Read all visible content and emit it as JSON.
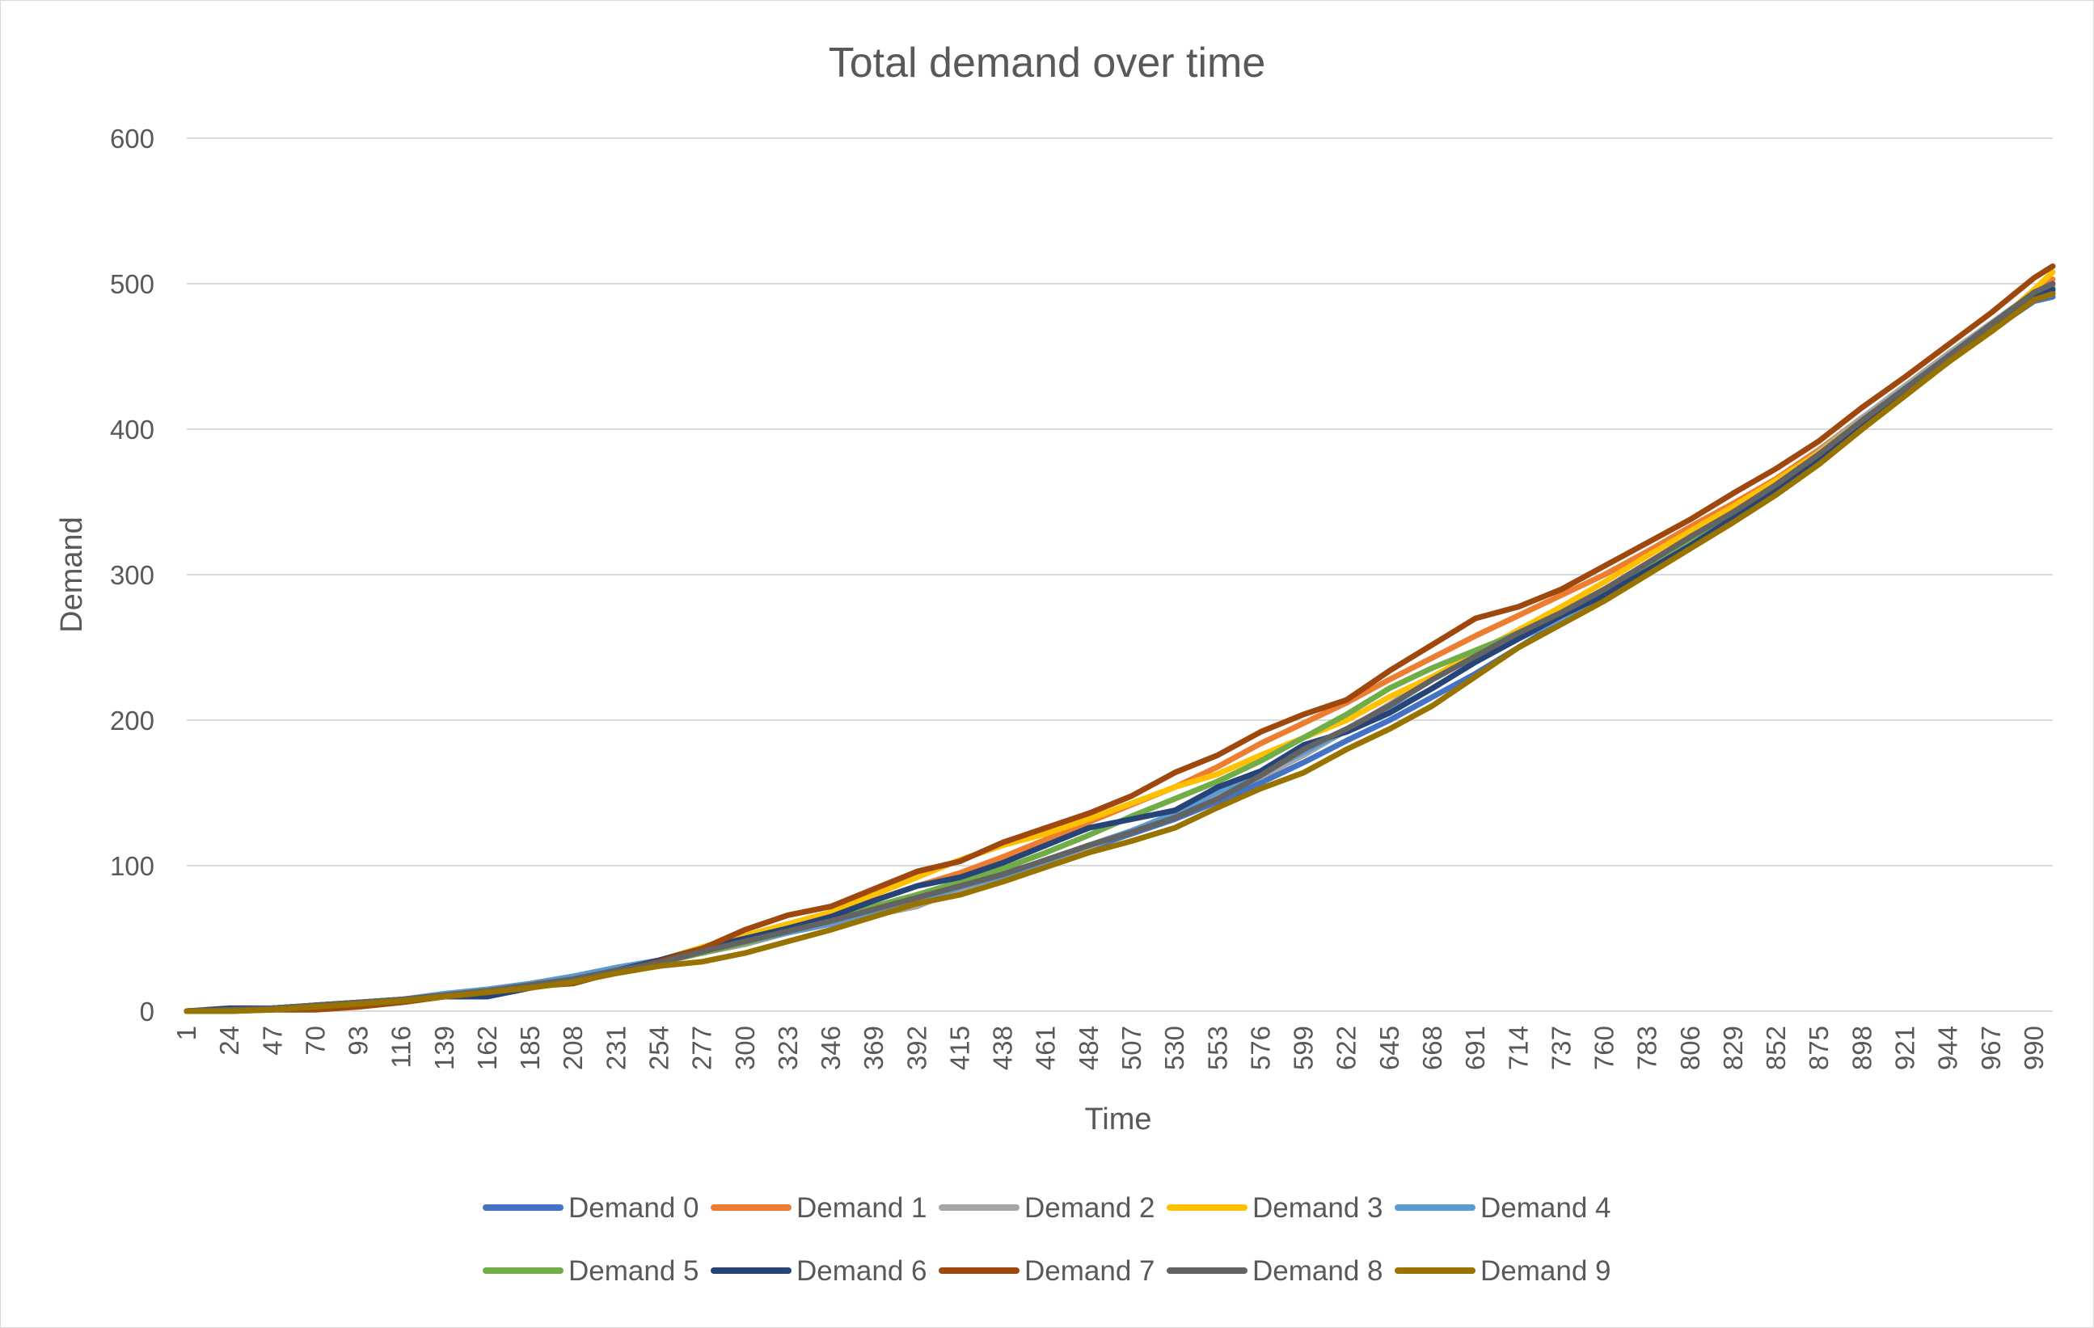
{
  "chart_data": {
    "type": "line",
    "title": "Total demand over time",
    "xlabel": "Time",
    "ylabel": "Demand",
    "ylim": [
      0,
      600
    ],
    "yticks": [
      0,
      100,
      200,
      300,
      400,
      500,
      600
    ],
    "xlim": [
      1,
      1000
    ],
    "xticks": [
      1,
      24,
      47,
      70,
      93,
      116,
      139,
      162,
      185,
      208,
      231,
      254,
      277,
      300,
      323,
      346,
      369,
      392,
      415,
      438,
      461,
      484,
      507,
      530,
      553,
      576,
      599,
      622,
      645,
      668,
      691,
      714,
      737,
      760,
      783,
      806,
      829,
      852,
      875,
      898,
      921,
      944,
      967,
      990
    ],
    "grid": true,
    "legend_position": "bottom",
    "x": [
      1,
      24,
      47,
      70,
      93,
      116,
      139,
      162,
      185,
      208,
      231,
      254,
      277,
      300,
      323,
      346,
      369,
      392,
      415,
      438,
      461,
      484,
      507,
      530,
      553,
      576,
      599,
      622,
      645,
      668,
      691,
      714,
      737,
      760,
      783,
      806,
      829,
      852,
      875,
      898,
      921,
      944,
      967,
      990,
      1000
    ],
    "series": [
      {
        "name": "Demand 0",
        "color": "#4472C4",
        "values": [
          0,
          1,
          2,
          4,
          6,
          8,
          11,
          14,
          18,
          22,
          28,
          34,
          41,
          48,
          55,
          62,
          70,
          78,
          86,
          95,
          103,
          112,
          122,
          132,
          144,
          157,
          171,
          186,
          200,
          216,
          232,
          250,
          268,
          285,
          303,
          321,
          340,
          358,
          378,
          402,
          424,
          446,
          468,
          488,
          491
        ]
      },
      {
        "name": "Demand 1",
        "color": "#ED7D31",
        "values": [
          0,
          1,
          2,
          3,
          5,
          8,
          11,
          14,
          17,
          21,
          27,
          34,
          42,
          51,
          58,
          66,
          76,
          86,
          95,
          106,
          118,
          130,
          142,
          154,
          168,
          184,
          198,
          212,
          228,
          243,
          258,
          272,
          286,
          300,
          316,
          333,
          349,
          366,
          386,
          408,
          428,
          448,
          470,
          494,
          503
        ]
      },
      {
        "name": "Demand 2",
        "color": "#A5A5A5",
        "values": [
          0,
          1,
          2,
          4,
          6,
          8,
          11,
          14,
          18,
          22,
          28,
          33,
          40,
          46,
          54,
          60,
          66,
          72,
          84,
          93,
          103,
          113,
          124,
          134,
          148,
          161,
          176,
          193,
          211,
          229,
          245,
          259,
          273,
          290,
          307,
          324,
          343,
          362,
          385,
          408,
          430,
          452,
          473,
          494,
          499
        ]
      },
      {
        "name": "Demand 3",
        "color": "#FFC000",
        "values": [
          0,
          1,
          2,
          4,
          6,
          8,
          11,
          14,
          17,
          21,
          28,
          35,
          44,
          52,
          60,
          68,
          80,
          92,
          104,
          114,
          122,
          132,
          143,
          154,
          163,
          176,
          188,
          200,
          216,
          230,
          246,
          262,
          278,
          295,
          313,
          330,
          347,
          365,
          384,
          406,
          427,
          448,
          470,
          496,
          508
        ]
      },
      {
        "name": "Demand 4",
        "color": "#5B9BD5",
        "values": [
          0,
          1,
          2,
          4,
          6,
          8,
          12,
          15,
          19,
          24,
          30,
          35,
          40,
          47,
          54,
          60,
          68,
          76,
          85,
          93,
          103,
          114,
          124,
          136,
          151,
          164,
          178,
          193,
          206,
          222,
          240,
          256,
          270,
          287,
          305,
          322,
          340,
          360,
          380,
          404,
          426,
          447,
          469,
          489,
          494
        ]
      },
      {
        "name": "Demand 5",
        "color": "#70AD47",
        "values": [
          0,
          1,
          2,
          4,
          6,
          8,
          11,
          14,
          18,
          22,
          28,
          34,
          40,
          47,
          55,
          63,
          72,
          80,
          89,
          98,
          109,
          121,
          134,
          146,
          158,
          172,
          188,
          204,
          222,
          236,
          248,
          260,
          274,
          290,
          306,
          323,
          341,
          360,
          382,
          405,
          427,
          448,
          470,
          491,
          497
        ]
      },
      {
        "name": "Demand 6",
        "color": "#264478",
        "values": [
          0,
          2,
          2,
          4,
          6,
          8,
          10,
          10,
          16,
          22,
          28,
          35,
          43,
          50,
          57,
          65,
          76,
          86,
          92,
          102,
          114,
          126,
          132,
          138,
          154,
          165,
          183,
          192,
          205,
          222,
          240,
          256,
          272,
          286,
          303,
          320,
          339,
          358,
          380,
          404,
          427,
          450,
          472,
          492,
          496
        ]
      },
      {
        "name": "Demand 7",
        "color": "#9E480E",
        "values": [
          0,
          0,
          1,
          1,
          3,
          6,
          10,
          13,
          17,
          19,
          27,
          34,
          43,
          56,
          66,
          72,
          84,
          96,
          103,
          116,
          126,
          136,
          148,
          164,
          176,
          192,
          204,
          214,
          234,
          252,
          270,
          278,
          290,
          306,
          322,
          338,
          356,
          373,
          392,
          415,
          436,
          458,
          480,
          504,
          512
        ]
      },
      {
        "name": "Demand 8",
        "color": "#636363",
        "values": [
          0,
          1,
          2,
          4,
          6,
          8,
          11,
          14,
          18,
          22,
          28,
          33,
          41,
          48,
          55,
          62,
          70,
          78,
          86,
          94,
          104,
          114,
          123,
          133,
          146,
          162,
          180,
          194,
          210,
          228,
          244,
          260,
          274,
          290,
          308,
          326,
          343,
          362,
          383,
          406,
          428,
          450,
          472,
          494,
          500
        ]
      },
      {
        "name": "Demand 9",
        "color": "#997300",
        "values": [
          0,
          0,
          1,
          3,
          5,
          7,
          10,
          13,
          16,
          20,
          26,
          31,
          34,
          40,
          48,
          56,
          65,
          74,
          80,
          89,
          99,
          109,
          117,
          126,
          140,
          153,
          164,
          180,
          194,
          210,
          230,
          250,
          266,
          282,
          300,
          318,
          336,
          355,
          376,
          400,
          423,
          446,
          467,
          489,
          493
        ]
      }
    ]
  }
}
